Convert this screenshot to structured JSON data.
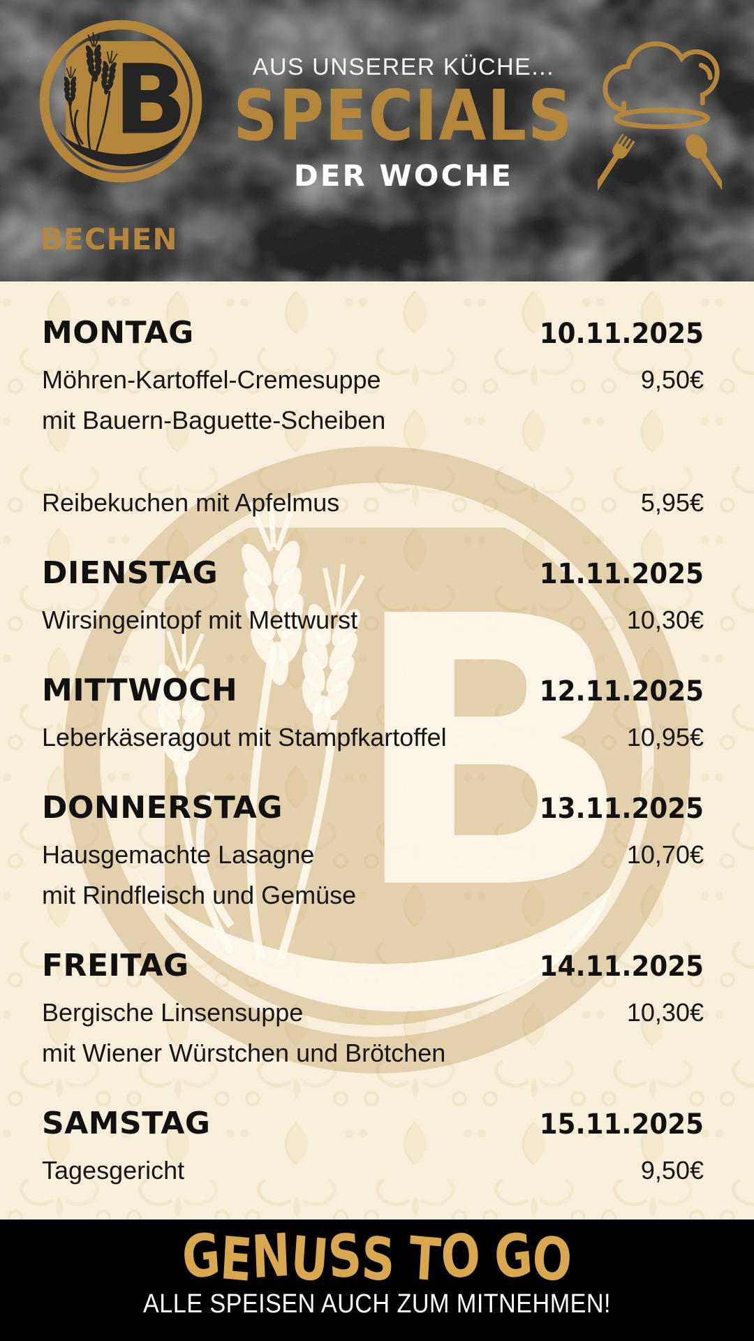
{
  "header": {
    "kicker": "AUS UNSERER KÜCHE...",
    "title": "SPECIALS",
    "subtitle": "DER WOCHE",
    "brand": "BECHEN",
    "logo_letter": "B",
    "icons": {
      "logo": "bakery-b-wheat-logo-icon",
      "right": "chef-hat-fork-spoon-icon"
    }
  },
  "menu": {
    "days": [
      {
        "day": "MONTAG",
        "date": "10.11.2025",
        "items": [
          {
            "lines": [
              "Möhren-Kartoffel-Cremesuppe",
              "mit Bauern-Baguette-Scheiben"
            ],
            "price": "9,50€"
          },
          {
            "lines": [
              "Reibekuchen mit Apfelmus"
            ],
            "price": "5,95€"
          }
        ]
      },
      {
        "day": "DIENSTAG",
        "date": "11.11.2025",
        "items": [
          {
            "lines": [
              "Wirsingeintopf mit Mettwurst"
            ],
            "price": "10,30€"
          }
        ]
      },
      {
        "day": "MITTWOCH",
        "date": "12.11.2025",
        "items": [
          {
            "lines": [
              "Leberkäseragout mit Stampfkartoffel"
            ],
            "price": "10,95€"
          }
        ]
      },
      {
        "day": "DONNERSTAG",
        "date": "13.11.2025",
        "items": [
          {
            "lines": [
              "Hausgemachte Lasagne",
              "mit Rindfleisch und Gemüse"
            ],
            "price": "10,70€"
          }
        ]
      },
      {
        "day": "FREITAG",
        "date": "14.11.2025",
        "items": [
          {
            "lines": [
              "Bergische Linsensuppe",
              "mit Wiener Würstchen und Brötchen"
            ],
            "price": "10,30€"
          }
        ]
      },
      {
        "day": "SAMSTAG",
        "date": "15.11.2025",
        "items": [
          {
            "lines": [
              "Tagesgericht"
            ],
            "price": "9,50€"
          }
        ]
      }
    ]
  },
  "footer": {
    "headline": "GENUSS TO GO",
    "subline": "ALLE SPEISEN AUCH ZUM MITNEHMEN!"
  },
  "colors": {
    "gold": "#b3863c",
    "footer_gold": "#d8a74e",
    "cream": "#f7efdb",
    "slate": "#242424",
    "text": "#161616"
  }
}
